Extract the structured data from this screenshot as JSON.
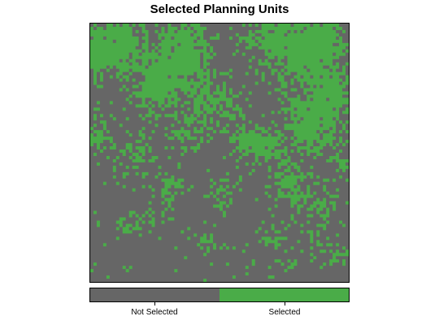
{
  "title": "Selected Planning Units",
  "colors": {
    "not_selected": "#666666",
    "selected": "#4aac48"
  },
  "legend": {
    "not_selected_label": "Not Selected",
    "selected_label": "Selected"
  }
}
